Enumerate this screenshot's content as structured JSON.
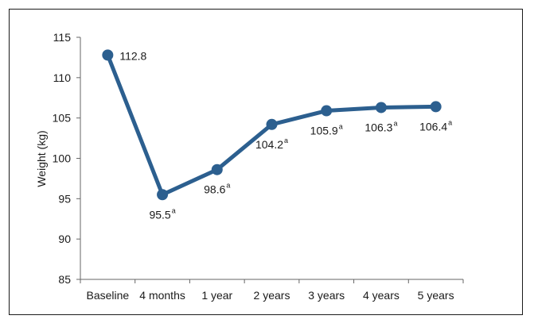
{
  "chart_data": {
    "type": "line",
    "title": "",
    "xlabel": "",
    "ylabel": "Weight (kg)",
    "ylim": [
      85,
      115
    ],
    "yticks": [
      85,
      90,
      95,
      100,
      105,
      110,
      115
    ],
    "categories": [
      "Baseline",
      "4 months",
      "1 year",
      "2 years",
      "3 years",
      "4 years",
      "5 years"
    ],
    "series": [
      {
        "values": [
          112.8,
          95.5,
          98.6,
          104.2,
          105.9,
          106.3,
          106.4
        ]
      }
    ],
    "data_labels": [
      "112.8",
      "95.5",
      "98.6",
      "104.2",
      "105.9",
      "106.3",
      "106.4"
    ],
    "data_label_superscripts": [
      "",
      "a",
      "a",
      "a",
      "a",
      "a",
      "a"
    ],
    "line_color": "#2c5f8f",
    "grid": false,
    "legend": "none"
  }
}
